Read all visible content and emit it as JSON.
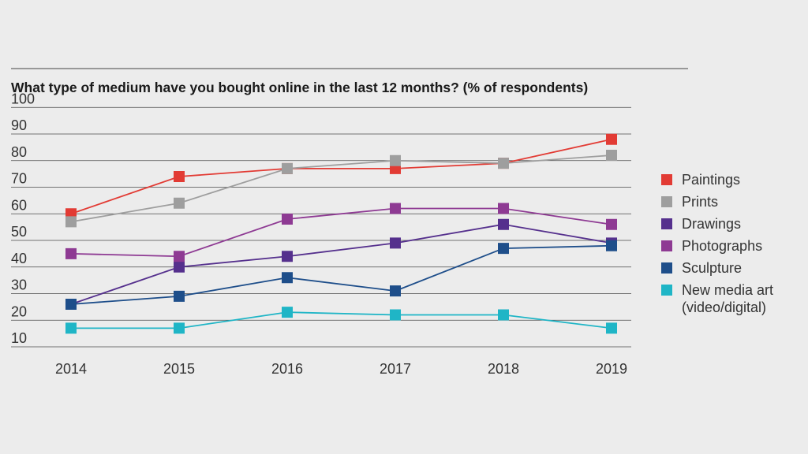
{
  "chart_data": {
    "type": "line",
    "title": "What type of medium have you bought online in the last 12 months? (% of respondents)",
    "xlabel": "",
    "ylabel": "",
    "x": [
      "2014",
      "2015",
      "2016",
      "2017",
      "2018",
      "2019"
    ],
    "y_ticks": [
      "100",
      "90",
      "80",
      "70",
      "60",
      "50",
      "40",
      "30",
      "20",
      "10"
    ],
    "ylim": [
      10,
      100
    ],
    "grid": true,
    "legend_position": "right",
    "series": [
      {
        "name": "Paintings",
        "color": "#e23b34",
        "values": [
          60,
          74,
          77,
          77,
          79,
          88
        ]
      },
      {
        "name": "Prints",
        "color": "#9e9e9e",
        "values": [
          57,
          64,
          77,
          80,
          79,
          82
        ]
      },
      {
        "name": "Drawings",
        "color": "#55308d",
        "values": [
          26,
          40,
          44,
          49,
          56,
          49
        ]
      },
      {
        "name": "Photographs",
        "color": "#8e3a93",
        "values": [
          45,
          44,
          58,
          62,
          62,
          56
        ]
      },
      {
        "name": "Sculpture",
        "color": "#1e4e8a",
        "values": [
          26,
          29,
          36,
          31,
          47,
          48
        ]
      },
      {
        "name": "New media art (video/digital)",
        "color": "#1fb5c6",
        "values": [
          17,
          17,
          23,
          22,
          22,
          17
        ],
        "legend_lines": [
          "New media art",
          "(video/digital)"
        ]
      }
    ]
  }
}
